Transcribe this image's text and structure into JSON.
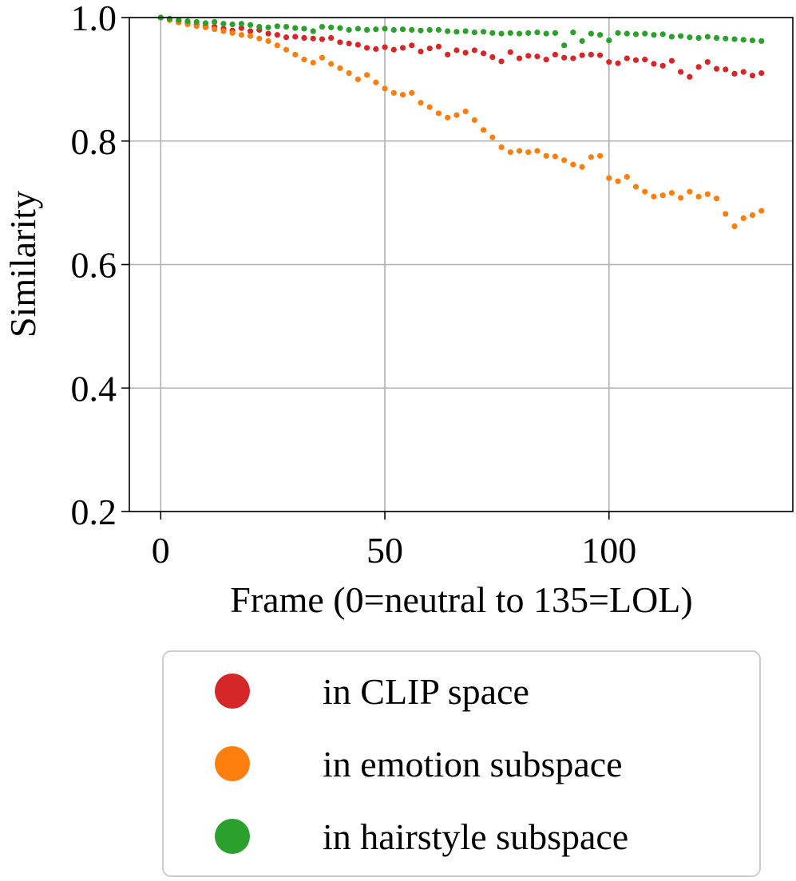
{
  "chart_data": {
    "type": "scatter",
    "title": "",
    "xlabel": "Frame (0=neutral to 135=LOL)",
    "ylabel": "Similarity",
    "xlim": [
      -7,
      141
    ],
    "ylim": [
      0.2,
      1.0
    ],
    "xticks": [
      0,
      50,
      100
    ],
    "xtick_labels": [
      "0",
      "50",
      "100"
    ],
    "yticks": [
      0.2,
      0.4,
      0.6,
      0.8,
      1.0
    ],
    "ytick_labels": [
      "0.2",
      "0.4",
      "0.6",
      "0.8",
      "1.0"
    ],
    "grid": true,
    "legend_position": "below",
    "series": [
      {
        "name": "in CLIP space",
        "color": "#d62728",
        "x": [
          0,
          2,
          4,
          6,
          8,
          10,
          12,
          14,
          16,
          18,
          20,
          22,
          24,
          26,
          28,
          30,
          32,
          34,
          36,
          38,
          40,
          42,
          44,
          46,
          48,
          50,
          52,
          54,
          56,
          58,
          60,
          62,
          64,
          66,
          68,
          70,
          72,
          74,
          76,
          78,
          80,
          82,
          84,
          86,
          88,
          90,
          92,
          94,
          96,
          98,
          100,
          102,
          104,
          106,
          108,
          110,
          112,
          114,
          116,
          118,
          120,
          122,
          124,
          126,
          128,
          130,
          132,
          134
        ],
        "values": [
          1.0,
          0.998,
          0.994,
          0.991,
          0.989,
          0.986,
          0.985,
          0.982,
          0.979,
          0.983,
          0.978,
          0.98,
          0.974,
          0.972,
          0.968,
          0.969,
          0.967,
          0.966,
          0.965,
          0.967,
          0.96,
          0.958,
          0.956,
          0.951,
          0.949,
          0.952,
          0.948,
          0.951,
          0.955,
          0.945,
          0.95,
          0.953,
          0.94,
          0.947,
          0.943,
          0.947,
          0.942,
          0.936,
          0.929,
          0.944,
          0.934,
          0.938,
          0.937,
          0.932,
          0.94,
          0.935,
          0.934,
          0.939,
          0.94,
          0.939,
          0.928,
          0.926,
          0.934,
          0.931,
          0.932,
          0.925,
          0.922,
          0.93,
          0.912,
          0.904,
          0.92,
          0.928,
          0.917,
          0.916,
          0.909,
          0.912,
          0.906,
          0.91
        ]
      },
      {
        "name": "in emotion subspace",
        "color": "#ff7f0e",
        "x": [
          0,
          2,
          4,
          6,
          8,
          10,
          12,
          14,
          16,
          18,
          20,
          22,
          24,
          26,
          28,
          30,
          32,
          34,
          36,
          38,
          40,
          42,
          44,
          46,
          48,
          50,
          52,
          54,
          56,
          58,
          60,
          62,
          64,
          66,
          68,
          70,
          72,
          74,
          76,
          78,
          80,
          82,
          84,
          86,
          88,
          90,
          92,
          94,
          96,
          98,
          100,
          102,
          104,
          106,
          108,
          110,
          112,
          114,
          116,
          118,
          120,
          122,
          124,
          126,
          128,
          130,
          132,
          134
        ],
        "values": [
          1.0,
          0.996,
          0.992,
          0.989,
          0.986,
          0.984,
          0.981,
          0.978,
          0.975,
          0.972,
          0.97,
          0.966,
          0.962,
          0.955,
          0.948,
          0.94,
          0.932,
          0.927,
          0.935,
          0.925,
          0.918,
          0.91,
          0.9,
          0.907,
          0.895,
          0.885,
          0.878,
          0.875,
          0.878,
          0.862,
          0.855,
          0.845,
          0.838,
          0.842,
          0.848,
          0.834,
          0.818,
          0.806,
          0.79,
          0.782,
          0.784,
          0.782,
          0.784,
          0.776,
          0.775,
          0.769,
          0.762,
          0.758,
          0.774,
          0.776,
          0.74,
          0.735,
          0.742,
          0.726,
          0.718,
          0.71,
          0.712,
          0.716,
          0.708,
          0.718,
          0.71,
          0.714,
          0.707,
          0.682,
          0.662,
          0.675,
          0.68,
          0.687
        ]
      },
      {
        "name": "in hairstyle subspace",
        "color": "#2ca02c",
        "x": [
          0,
          2,
          4,
          6,
          8,
          10,
          12,
          14,
          16,
          18,
          20,
          22,
          24,
          26,
          28,
          30,
          32,
          34,
          36,
          38,
          40,
          42,
          44,
          46,
          48,
          50,
          52,
          54,
          56,
          58,
          60,
          62,
          64,
          66,
          68,
          70,
          72,
          74,
          76,
          78,
          80,
          82,
          84,
          86,
          88,
          90,
          92,
          94,
          96,
          98,
          100,
          102,
          104,
          106,
          108,
          110,
          112,
          114,
          116,
          118,
          120,
          122,
          124,
          126,
          128,
          130,
          132,
          134
        ],
        "values": [
          1.0,
          0.998,
          0.996,
          0.994,
          0.993,
          0.991,
          0.993,
          0.99,
          0.989,
          0.99,
          0.988,
          0.985,
          0.984,
          0.986,
          0.985,
          0.983,
          0.982,
          0.978,
          0.985,
          0.984,
          0.983,
          0.98,
          0.982,
          0.98,
          0.981,
          0.982,
          0.98,
          0.981,
          0.98,
          0.979,
          0.98,
          0.98,
          0.978,
          0.977,
          0.978,
          0.976,
          0.977,
          0.975,
          0.974,
          0.975,
          0.974,
          0.975,
          0.976,
          0.974,
          0.975,
          0.955,
          0.976,
          0.962,
          0.974,
          0.972,
          0.963,
          0.975,
          0.974,
          0.973,
          0.974,
          0.972,
          0.973,
          0.969,
          0.97,
          0.968,
          0.967,
          0.969,
          0.967,
          0.966,
          0.965,
          0.964,
          0.963,
          0.962
        ]
      }
    ]
  }
}
